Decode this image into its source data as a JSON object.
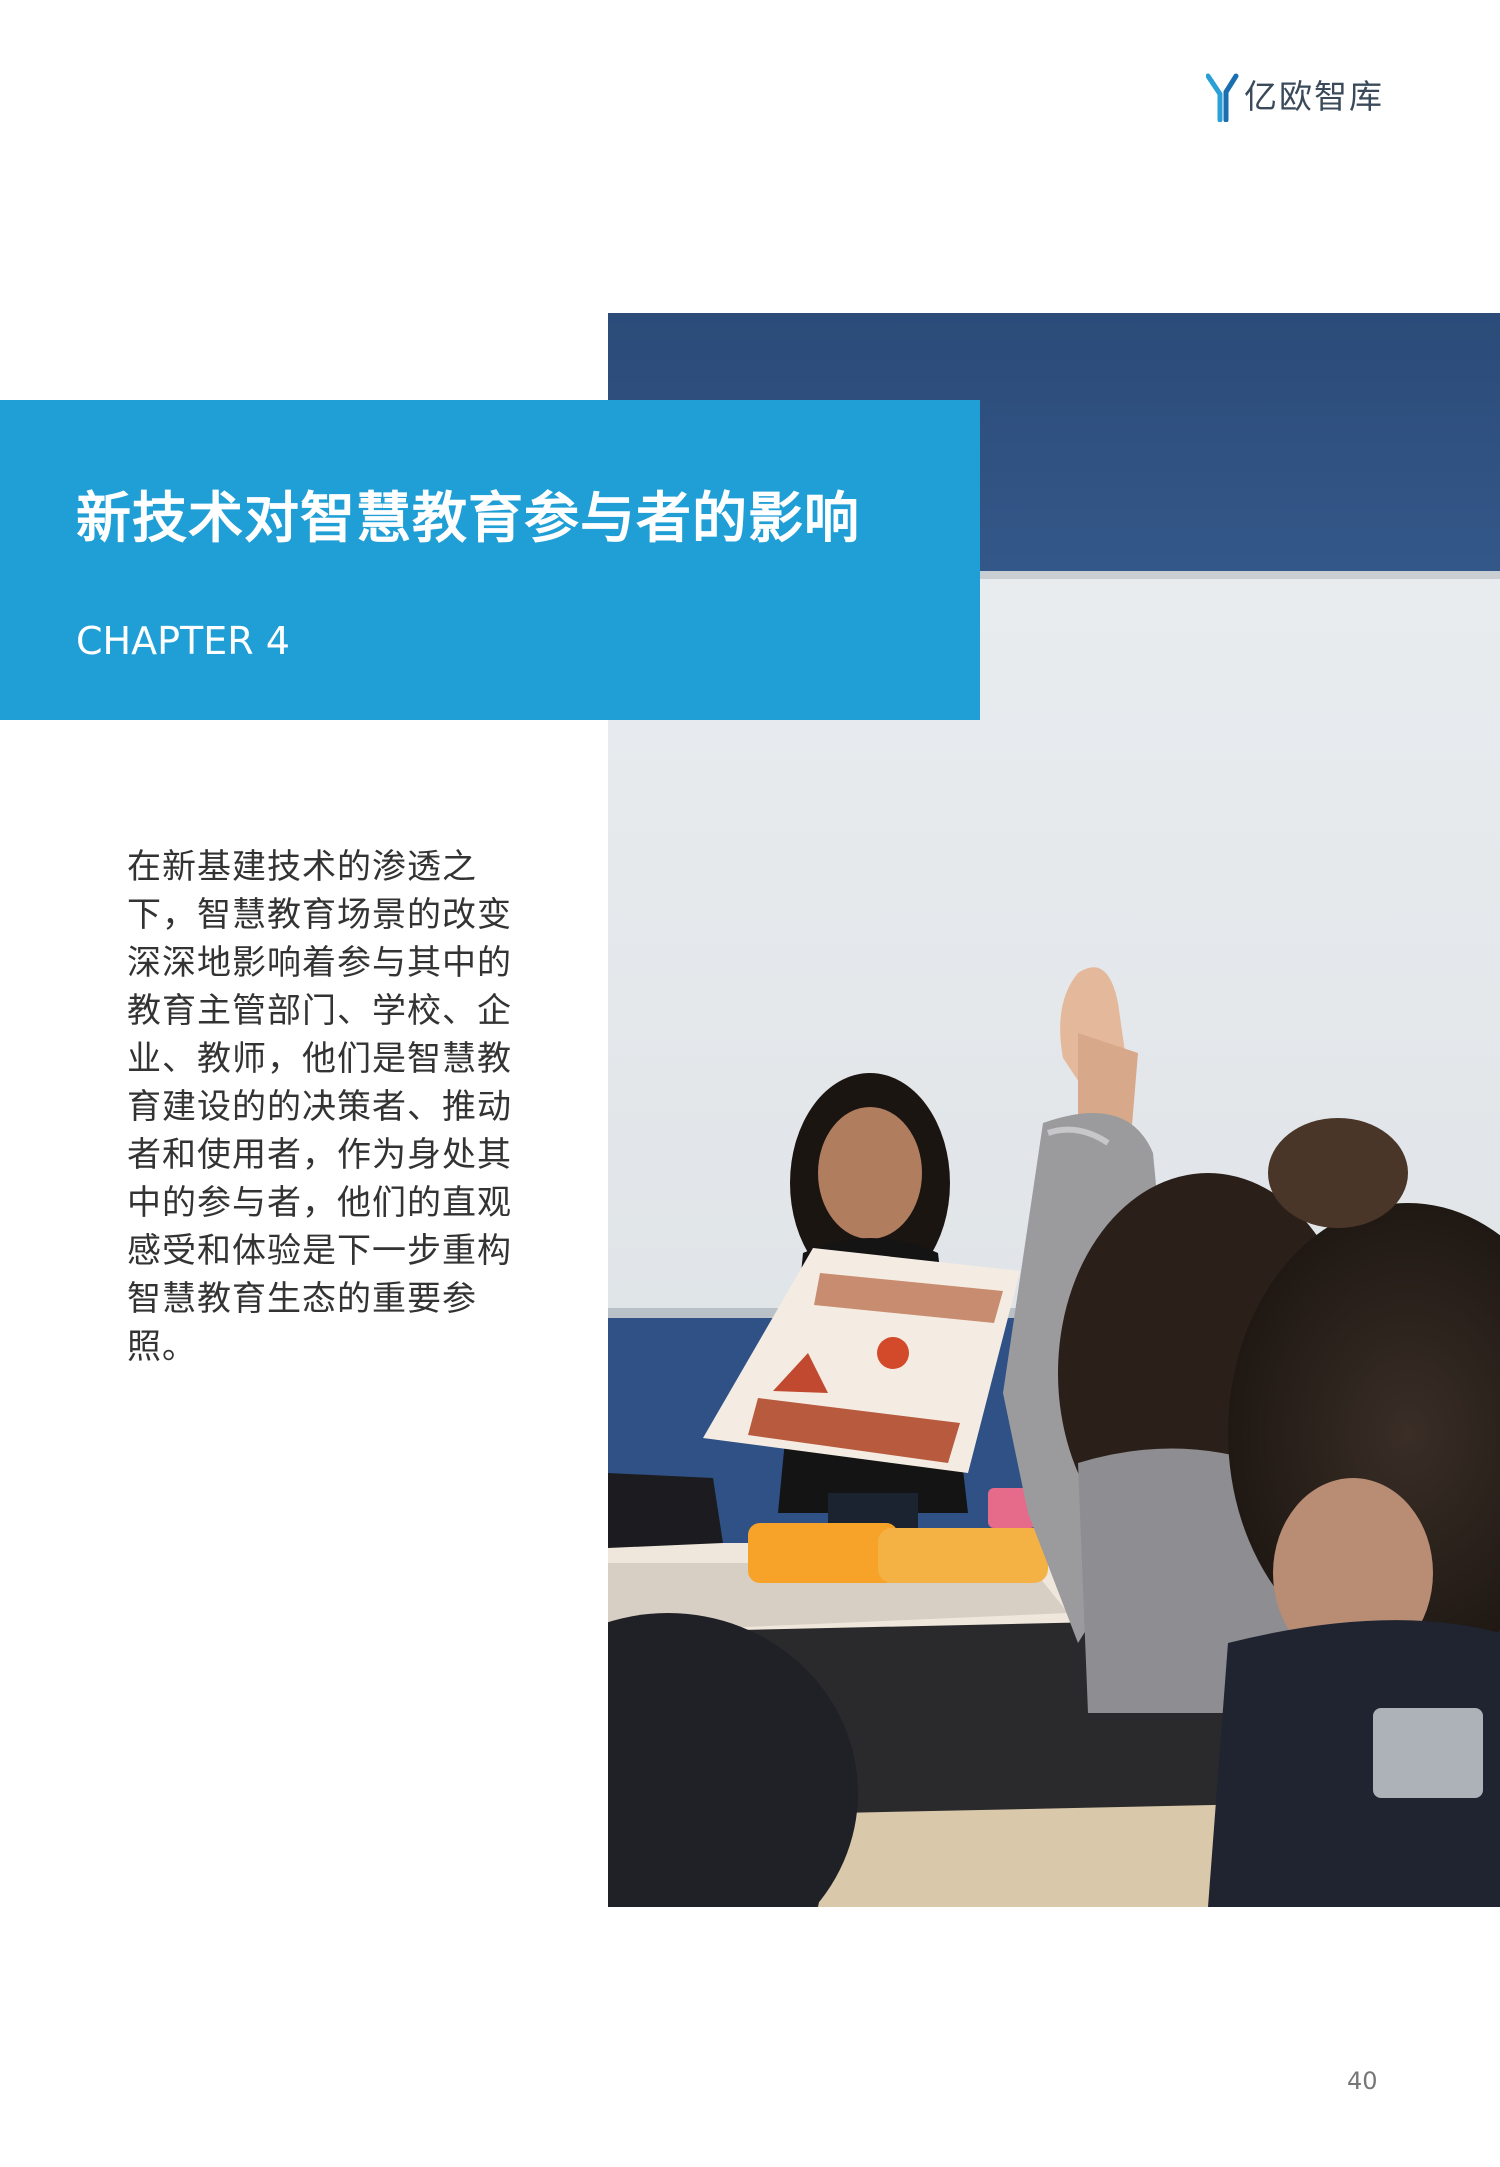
{
  "header": {
    "logo_text": "亿欧智库",
    "logo_color": "#2aa0d6"
  },
  "banner": {
    "title": "新技术对智慧教育参与者的影响",
    "chapter_label": "CHAPTER 4",
    "color": "#1f9fd5"
  },
  "body": {
    "paragraph": "在新基建技术的渗透之下，智慧教育场景的改变深深地影响着参与其中的教育主管部门、学校、企业、教师，他们是智慧教育建设的的决策者、推动者和使用者，作为身处其中的参与者，他们的直观感受和体验是下一步重构智慧教育生态的重要参照。"
  },
  "footer": {
    "page_number": "40"
  }
}
